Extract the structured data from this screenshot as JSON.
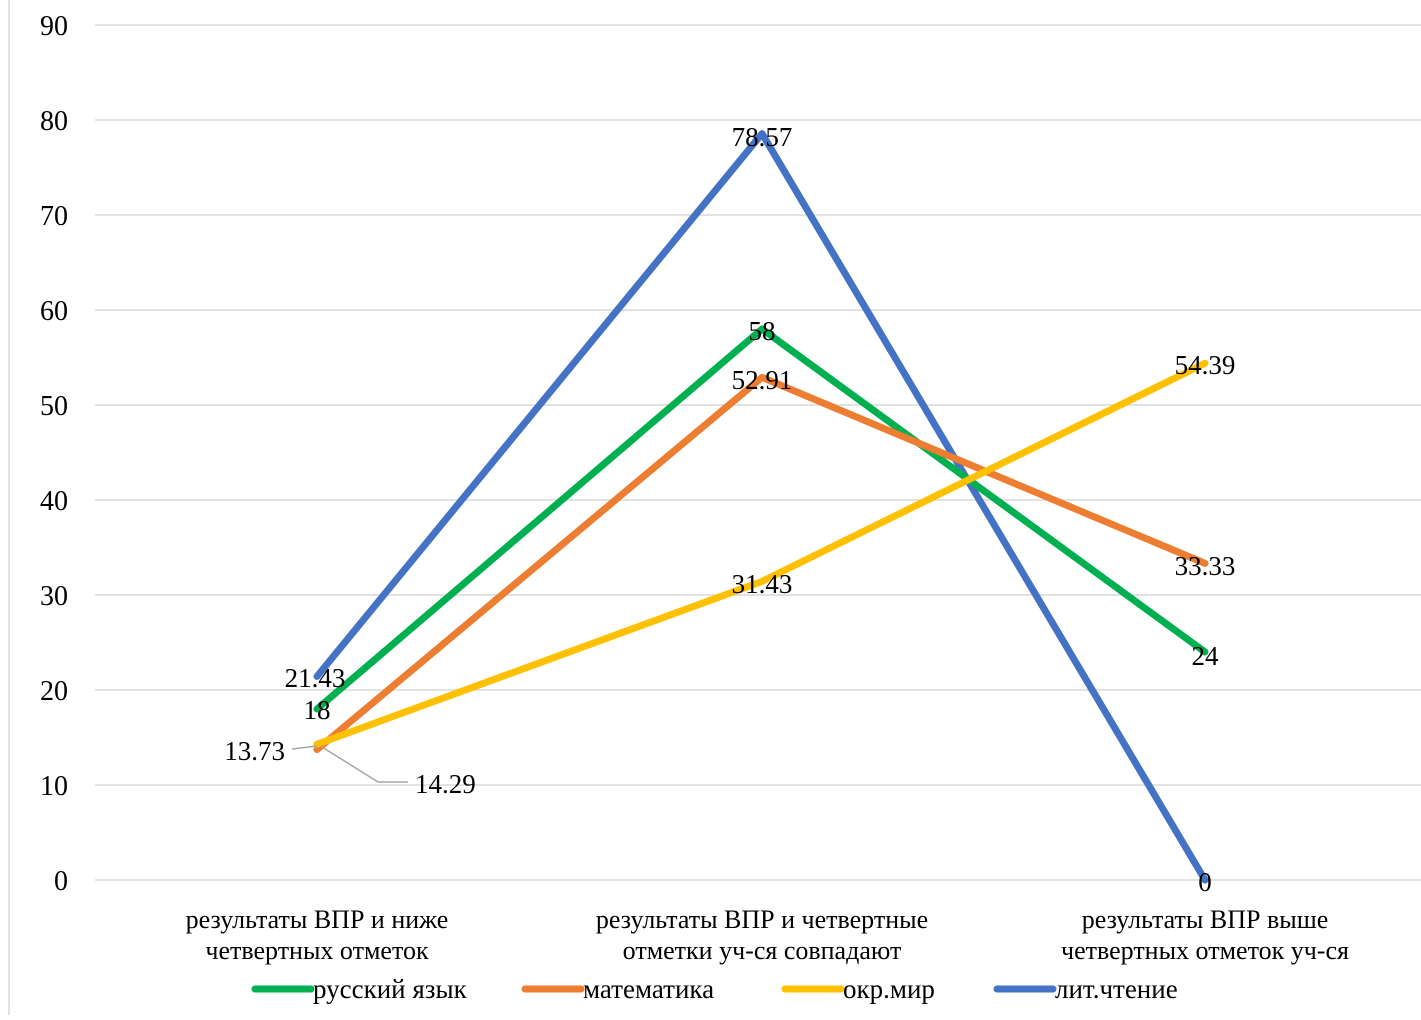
{
  "chart_data": {
    "type": "line",
    "title": "",
    "xlabel": "",
    "ylabel": "",
    "ylim": [
      0,
      90
    ],
    "yticks": [
      0,
      10,
      20,
      30,
      40,
      50,
      60,
      70,
      80,
      90
    ],
    "grid": true,
    "legend_position": "bottom",
    "categories": [
      [
        "результаты ВПР и ниже",
        "четвертных отметок"
      ],
      [
        "результаты ВПР и четвертные",
        "отметки уч-ся совпадают"
      ],
      [
        "результаты ВПР выше",
        "четвертных отметок уч-ся"
      ]
    ],
    "series": [
      {
        "name": "лит.чтение",
        "color": "#4472C4",
        "values": [
          21.43,
          78.57,
          0
        ],
        "labels": [
          "21.43",
          "78.57",
          "0"
        ]
      },
      {
        "name": "русский язык",
        "color": "#00B050",
        "values": [
          18,
          58,
          24
        ],
        "labels": [
          "18",
          "58",
          "24"
        ]
      },
      {
        "name": "математика",
        "color": "#ED7D31",
        "values": [
          13.73,
          52.91,
          33.33
        ],
        "labels": [
          "13.73",
          "52.91",
          "33.33"
        ]
      },
      {
        "name": "окр.мир",
        "color": "#FFC000",
        "values": [
          14.29,
          31.43,
          54.39
        ],
        "labels": [
          "14.29",
          "31.43",
          "54.39"
        ]
      }
    ],
    "legend_order": [
      1,
      2,
      3,
      0
    ]
  }
}
